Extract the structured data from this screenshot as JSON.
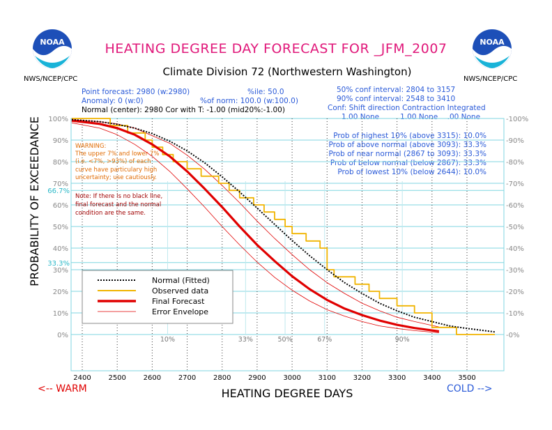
{
  "page": {
    "title": "HEATING DEGREE DAY FORECAST FOR _JFM_2007",
    "subtitle": "Climate Division 72 (Northwestern Washington)",
    "agency_left": "NWS/NCEP/CPC",
    "agency_right": "NWS/NCEP/CPC",
    "logo_text": "NOAA",
    "direction_warm": "<-- WARM",
    "direction_cold": "COLD -->"
  },
  "info": {
    "point_forecast": "Point forecast: 2980 (w:2980)",
    "percentile": "%ile: 50.0",
    "anomaly": "Anomaly: 0 (w:0)",
    "pct_norm": "%of norm: 100.0 (w:100.0)",
    "normal_center": "Normal (center): 2980 Cor with T: -1.00 (mid20%:-1.00)",
    "conf50": "50% conf interval: 2804 to 3157",
    "conf90": "90% conf interval: 2548 to 3410",
    "conf_header": "Conf: Shift direction   Contraction   Integrated",
    "conf_values": "1.00 None         1.00 None    .00 None",
    "probs": [
      "Prob of highest 10% (above 3315): 10.0%",
      "Prob of above normal (above 3093): 33.3%",
      "Prob of near normal (2867 to 3093): 33.3%",
      "Prob of below normal (below 2867): 33.3%",
      "Prob of lowest 10% (below 2644): 10.0%"
    ]
  },
  "warning": {
    "lines": [
      "WARNING:",
      "The upper 7% and lower 7%",
      "(i.e. <7%, >93%) of each",
      "curve have particulary high",
      "uncertainty; use cautiously."
    ]
  },
  "note": {
    "lines": [
      "Note: If there is no black line,",
      "final forecast and  the normal",
      "condition are the same."
    ]
  },
  "legend": {
    "items": [
      {
        "label": "Normal (Fitted)",
        "color": "#000000",
        "style": "dotted"
      },
      {
        "label": "Observed data",
        "color": "#f0b400",
        "style": "solid"
      },
      {
        "label": "Final Forecast",
        "color": "#e00000",
        "style": "thick"
      },
      {
        "label": "Error Envelope",
        "color": "#e00000",
        "style": "thin"
      }
    ]
  },
  "colors": {
    "title": "#e0187a",
    "info": "#2a5ad8",
    "warning": "#e06a00",
    "note": "#a00000",
    "grid_cyan": "#7fd6e0",
    "refline": "#aaaaaa"
  },
  "chart_data": {
    "type": "line",
    "title": "HEATING DEGREE DAY FORECAST FOR _JFM_2007",
    "xlabel": "HEATING DEGREE DAYS",
    "ylabel": "PROBABILITY OF EXCEEDANCE",
    "xlim": [
      2370,
      3580
    ],
    "ylim": [
      -15,
      100
    ],
    "x_ticks": [
      2400,
      2500,
      2600,
      2700,
      2800,
      2900,
      3000,
      3100,
      3200,
      3300,
      3400,
      3500
    ],
    "y_ticks": [
      0,
      10,
      20,
      30,
      40,
      50,
      60,
      70,
      80,
      90,
      100
    ],
    "y_tick_labels": [
      "0%",
      "10%",
      "20%",
      "30%",
      "40%",
      "50%",
      "60%",
      "70%",
      "80%",
      "90%",
      "100%"
    ],
    "extra_y_lines": [
      {
        "value": 66.7,
        "label": "66.7%"
      },
      {
        "value": 33.3,
        "label": "33.3%"
      }
    ],
    "percentile_markers": [
      {
        "label": "10%",
        "x": 2644
      },
      {
        "label": "33%",
        "x": 2867
      },
      {
        "label": "50%",
        "x": 2980
      },
      {
        "label": "67%",
        "x": 3093
      },
      {
        "label": "90%",
        "x": 3315
      }
    ],
    "series": [
      {
        "name": "Normal (Fitted)",
        "x": [
          2370,
          2450,
          2500,
          2550,
          2600,
          2650,
          2700,
          2750,
          2800,
          2850,
          2900,
          2950,
          3000,
          3050,
          3100,
          3150,
          3200,
          3250,
          3300,
          3350,
          3400,
          3450,
          3500,
          3580
        ],
        "y": [
          99.5,
          98.5,
          97.3,
          95.5,
          93.0,
          89.5,
          85.0,
          79.5,
          73.0,
          66.0,
          58.5,
          51.0,
          43.5,
          36.5,
          30.0,
          24.0,
          19.0,
          14.5,
          11.0,
          8.0,
          6.0,
          4.0,
          2.8,
          1.2
        ]
      },
      {
        "name": "Observed data",
        "x": [
          2370,
          2480,
          2480,
          2530,
          2530,
          2580,
          2580,
          2600,
          2600,
          2630,
          2630,
          2660,
          2660,
          2700,
          2700,
          2740,
          2740,
          2790,
          2790,
          2820,
          2820,
          2850,
          2850,
          2890,
          2890,
          2920,
          2920,
          2950,
          2950,
          2980,
          2980,
          3000,
          3000,
          3040,
          3040,
          3080,
          3080,
          3100,
          3100,
          3120,
          3120,
          3180,
          3180,
          3220,
          3220,
          3250,
          3250,
          3300,
          3300,
          3350,
          3350,
          3400,
          3400,
          3470,
          3470,
          3580
        ],
        "y": [
          100,
          100,
          96.7,
          96.7,
          93.3,
          93.3,
          90.0,
          90.0,
          86.7,
          86.7,
          83.3,
          83.3,
          80.0,
          80.0,
          76.7,
          76.7,
          73.3,
          73.3,
          70.0,
          70.0,
          66.7,
          66.7,
          63.3,
          63.3,
          60.0,
          60.0,
          56.7,
          56.7,
          53.3,
          53.3,
          50.0,
          50.0,
          46.7,
          46.7,
          43.3,
          43.3,
          40.0,
          40.0,
          30.0,
          30.0,
          26.7,
          26.7,
          23.3,
          23.3,
          20.0,
          20.0,
          16.7,
          16.7,
          13.3,
          13.3,
          10.0,
          10.0,
          3.3,
          3.3,
          0.0,
          0.0
        ]
      },
      {
        "name": "Final Forecast",
        "x": [
          2370,
          2450,
          2500,
          2550,
          2600,
          2650,
          2700,
          2750,
          2800,
          2850,
          2900,
          2950,
          3000,
          3050,
          3100,
          3150,
          3200,
          3250,
          3300,
          3350,
          3420
        ],
        "y": [
          99.0,
          97.5,
          95.5,
          92.5,
          88.0,
          82.5,
          75.5,
          67.5,
          59.0,
          50.0,
          41.5,
          34.0,
          27.0,
          21.0,
          16.0,
          12.0,
          9.0,
          6.5,
          4.5,
          3.0,
          1.5
        ]
      },
      {
        "name": "Error Envelope Upper",
        "x": [
          2370,
          2450,
          2500,
          2550,
          2600,
          2650,
          2700,
          2750,
          2800,
          2850,
          2900,
          2950,
          3000,
          3050,
          3100,
          3150,
          3200,
          3250,
          3300,
          3350,
          3420
        ],
        "y": [
          99.5,
          98.5,
          97.5,
          95.5,
          92.0,
          88.5,
          83.0,
          76.5,
          69.0,
          61.0,
          52.5,
          44.5,
          37.0,
          30.0,
          24.0,
          19.0,
          14.5,
          11.0,
          8.0,
          6.0,
          3.5
        ]
      },
      {
        "name": "Error Envelope Lower",
        "x": [
          2370,
          2450,
          2500,
          2550,
          2600,
          2650,
          2700,
          2750,
          2800,
          2850,
          2900,
          2950,
          3000,
          3050,
          3100,
          3150,
          3200,
          3250,
          3300,
          3350,
          3420
        ],
        "y": [
          98.0,
          95.5,
          92.5,
          88.0,
          82.5,
          75.5,
          67.5,
          59.0,
          50.0,
          41.5,
          33.5,
          26.5,
          20.5,
          15.5,
          11.5,
          8.5,
          6.0,
          4.0,
          2.8,
          1.8,
          0.8
        ]
      }
    ]
  }
}
